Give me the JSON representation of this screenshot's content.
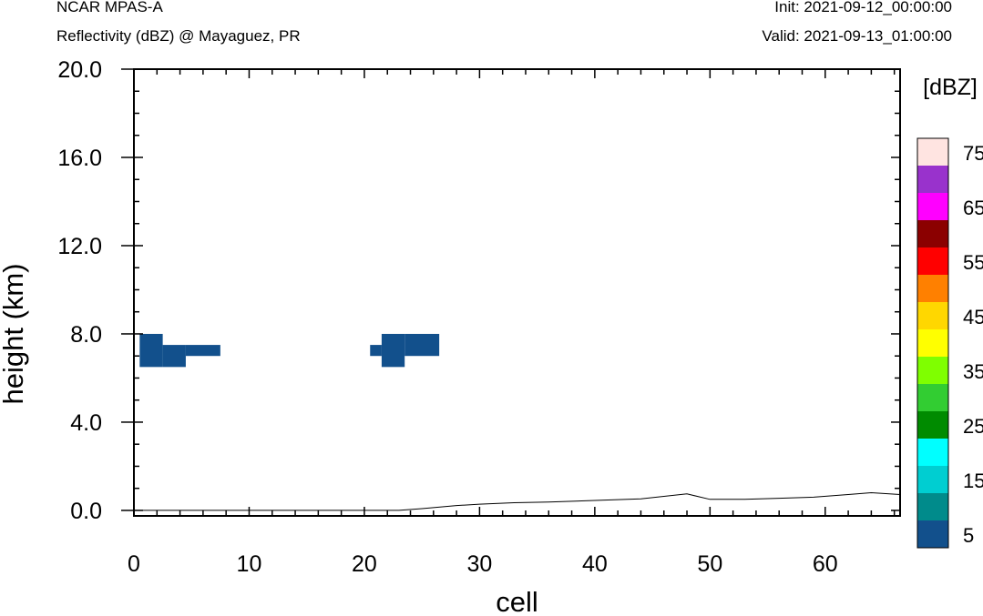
{
  "header": {
    "model": "NCAR MPAS-A",
    "field": "Reflectivity (dBZ) @ Mayaguez, PR",
    "init": "Init: 2021-09-12_00:00:00",
    "valid": "Valid: 2021-09-13_01:00:00"
  },
  "chart_data": {
    "type": "heatmap",
    "title": "Reflectivity (dBZ) @ Mayaguez, PR",
    "xlabel": "cell",
    "ylabel": "height (km)",
    "xlim": [
      0,
      66.5
    ],
    "ylim": [
      -0.25,
      20.0
    ],
    "xticks": [
      0,
      10,
      20,
      30,
      40,
      50,
      60
    ],
    "xtick_labels": [
      "0",
      "10",
      "20",
      "30",
      "40",
      "50",
      "60"
    ],
    "yticks": [
      0,
      4,
      8,
      12,
      16,
      20
    ],
    "ytick_labels": [
      "0.0",
      "4.0",
      "8.0",
      "12.0",
      "16.0",
      "20.0"
    ],
    "colorbar": {
      "title": "[dBZ]",
      "levels": [
        5,
        10,
        15,
        20,
        25,
        30,
        35,
        40,
        45,
        50,
        55,
        60,
        65,
        70,
        75
      ],
      "colors": [
        "#12508c",
        "#008b8b",
        "#00ced1",
        "#00ffff",
        "#008b00",
        "#32cd32",
        "#7fff00",
        "#ffff00",
        "#ffd700",
        "#ff8000",
        "#ff0000",
        "#8b0000",
        "#ff00ff",
        "#9932cc",
        "#ffe4e1"
      ],
      "labels": [
        "5",
        "15",
        "25",
        "35",
        "45",
        "55",
        "65",
        "75"
      ]
    },
    "reflectivity_regions": [
      {
        "dbz": 5,
        "x": [
          0.5,
          2.5
        ],
        "y": [
          6.5,
          8.0
        ]
      },
      {
        "dbz": 5,
        "x": [
          2.5,
          4.5
        ],
        "y": [
          6.5,
          7.5
        ]
      },
      {
        "dbz": 5,
        "x": [
          4.5,
          7.5
        ],
        "y": [
          7.0,
          7.5
        ]
      },
      {
        "dbz": 5,
        "x": [
          20.5,
          21.5
        ],
        "y": [
          7.0,
          7.5
        ]
      },
      {
        "dbz": 5,
        "x": [
          21.5,
          23.5
        ],
        "y": [
          6.5,
          8.0
        ]
      },
      {
        "dbz": 5,
        "x": [
          23.5,
          26.5
        ],
        "y": [
          7.0,
          8.0
        ]
      }
    ],
    "terrain": {
      "x": [
        0,
        23,
        25,
        28,
        30,
        33,
        36,
        40,
        44,
        48,
        50,
        53,
        56,
        59,
        62,
        64,
        66.5
      ],
      "y": [
        0,
        0,
        0.08,
        0.22,
        0.28,
        0.35,
        0.38,
        0.45,
        0.52,
        0.75,
        0.5,
        0.5,
        0.55,
        0.6,
        0.72,
        0.8,
        0.72
      ]
    }
  }
}
